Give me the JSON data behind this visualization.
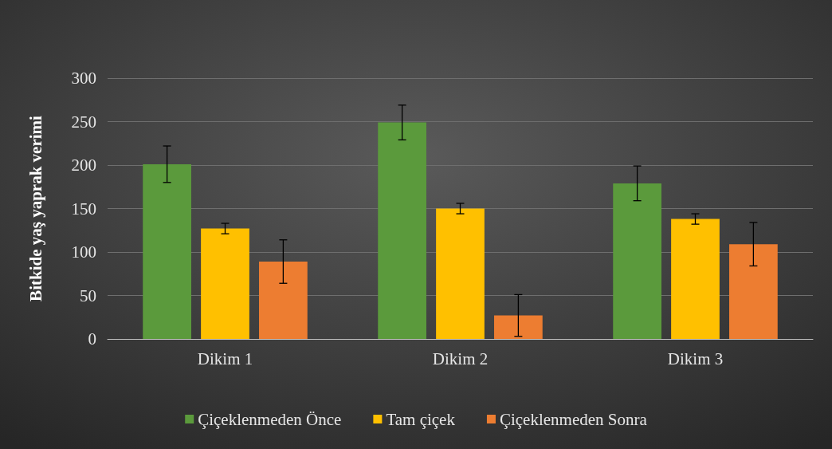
{
  "chart_data": {
    "type": "bar",
    "ylabel": "Bitkide yaş yaprak verimi",
    "categories": [
      "Dikim 1",
      "Dikim 2",
      "Dikim 3"
    ],
    "series": [
      {
        "name": "Çiçeklenmeden Önce",
        "color": "#5b9a3c",
        "values": [
          201,
          249,
          179
        ],
        "errors": [
          21,
          20,
          20
        ]
      },
      {
        "name": "Tam çiçek",
        "color": "#ffc000",
        "values": [
          127,
          150,
          138
        ],
        "errors": [
          6,
          6,
          6
        ]
      },
      {
        "name": "Çiçeklenmeden Sonra",
        "color": "#ed7d31",
        "values": [
          89,
          27,
          109
        ],
        "errors": [
          25,
          24,
          25
        ]
      }
    ],
    "ylim": [
      0,
      300
    ],
    "yticks": [
      0,
      50,
      100,
      150,
      200,
      250,
      300
    ],
    "grid": "y",
    "legend": "bottom"
  }
}
